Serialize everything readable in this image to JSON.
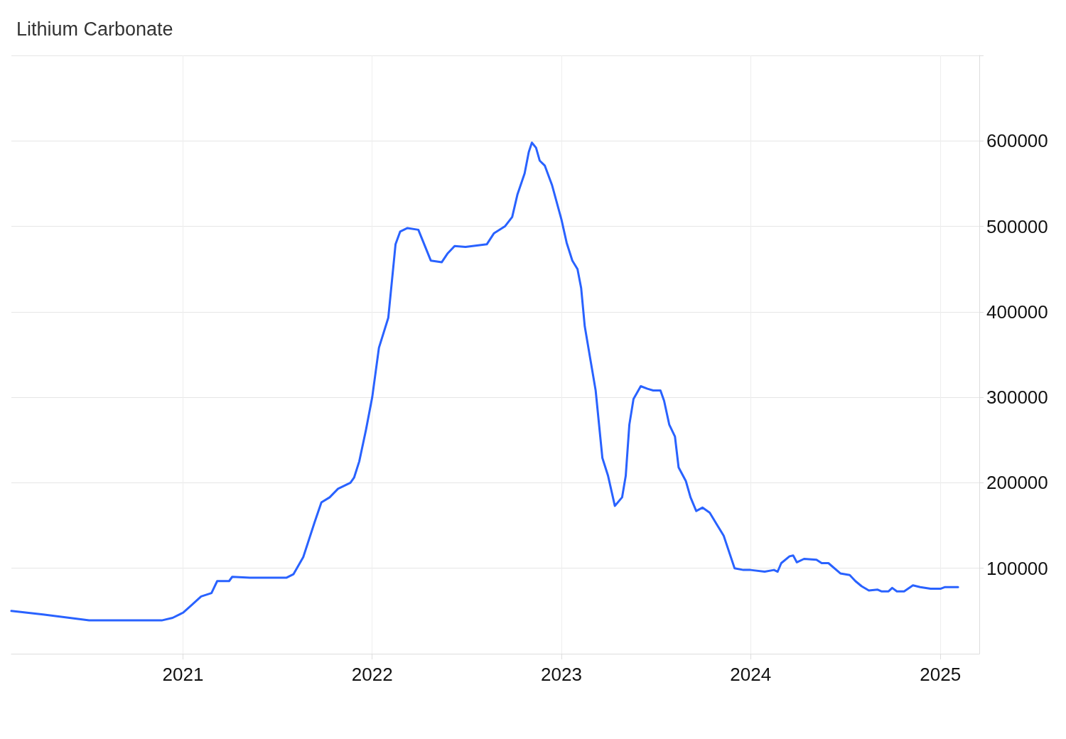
{
  "chart_data": {
    "type": "line",
    "title": "Lithium Carbonate",
    "x": [
      "2020-02-05",
      "2020-04-06",
      "2020-07-04",
      "2020-11-21",
      "2020-12-12",
      "2021-01-01",
      "2021-01-16",
      "2021-02-05",
      "2021-02-25",
      "2021-03-08",
      "2021-03-31",
      "2021-04-06",
      "2021-05-10",
      "2021-07-20",
      "2021-08-02",
      "2021-08-21",
      "2021-09-12",
      "2021-09-25",
      "2021-10-11",
      "2021-10-27",
      "2021-11-20",
      "2021-11-27",
      "2021-12-07",
      "2021-12-20",
      "2022-01-01",
      "2022-01-14",
      "2022-02-01",
      "2022-02-15",
      "2022-02-24",
      "2022-03-10",
      "2022-03-31",
      "2022-04-10",
      "2022-04-24",
      "2022-05-15",
      "2022-05-26",
      "2022-06-09",
      "2022-06-30",
      "2022-08-10",
      "2022-08-24",
      "2022-09-14",
      "2022-09-28",
      "2022-10-08",
      "2022-10-22",
      "2022-10-30",
      "2022-11-05",
      "2022-11-13",
      "2022-11-20",
      "2022-11-30",
      "2022-12-14",
      "2023-01-01",
      "2023-01-11",
      "2023-01-22",
      "2023-02-01",
      "2023-02-08",
      "2023-02-15",
      "2023-03-08",
      "2023-03-21",
      "2023-04-01",
      "2023-04-14",
      "2023-04-28",
      "2023-05-05",
      "2023-05-12",
      "2023-05-20",
      "2023-06-03",
      "2023-06-16",
      "2023-06-27",
      "2023-07-11",
      "2023-07-18",
      "2023-07-28",
      "2023-08-08",
      "2023-08-15",
      "2023-08-29",
      "2023-09-07",
      "2023-09-18",
      "2023-09-30",
      "2023-10-14",
      "2023-10-27",
      "2023-11-10",
      "2023-12-01",
      "2023-12-18",
      "2024-01-01",
      "2024-01-28",
      "2024-02-15",
      "2024-02-22",
      "2024-02-29",
      "2024-03-16",
      "2024-03-23",
      "2024-03-30",
      "2024-04-13",
      "2024-05-07",
      "2024-05-17",
      "2024-05-30",
      "2024-06-22",
      "2024-07-10",
      "2024-07-21",
      "2024-08-02",
      "2024-08-16",
      "2024-09-02",
      "2024-09-09",
      "2024-09-23",
      "2024-09-30",
      "2024-10-09",
      "2024-10-23",
      "2024-11-09",
      "2024-11-23",
      "2024-12-13",
      "2025-01-01",
      "2025-01-10",
      "2025-02-04"
    ],
    "series": [
      {
        "color": "#2962ff",
        "values": [
          50000,
          46000,
          39000,
          39000,
          42000,
          48000,
          56000,
          67000,
          71000,
          85000,
          85000,
          90000,
          89000,
          89000,
          93000,
          113000,
          154000,
          177000,
          183000,
          193000,
          200000,
          206000,
          225000,
          262000,
          300000,
          358000,
          393000,
          479000,
          494000,
          498000,
          496000,
          481000,
          460000,
          458000,
          468000,
          477000,
          476000,
          479000,
          492000,
          500000,
          511000,
          537000,
          562000,
          587000,
          598000,
          592000,
          577000,
          571000,
          548000,
          508000,
          481000,
          460000,
          450000,
          428000,
          383000,
          308000,
          229000,
          208000,
          173000,
          183000,
          208000,
          268000,
          298000,
          313000,
          310000,
          308000,
          308000,
          296000,
          268000,
          254000,
          218000,
          202000,
          183000,
          167000,
          171000,
          165000,
          152000,
          138000,
          100000,
          98000,
          98000,
          96000,
          98000,
          96000,
          106000,
          114000,
          115000,
          107000,
          111000,
          110000,
          106000,
          106000,
          94000,
          92000,
          85000,
          79000,
          74000,
          75000,
          73000,
          73000,
          77000,
          73000,
          73000,
          80000,
          78000,
          76000,
          76000,
          78000,
          78000
        ]
      }
    ],
    "xlim": [
      "2020-02-05",
      "2025-03-17"
    ],
    "xticks": [
      "2021",
      "2022",
      "2023",
      "2024",
      "2025"
    ],
    "ylim": [
      0,
      700000
    ],
    "yticks": [
      100000,
      200000,
      300000,
      400000,
      500000,
      600000,
      {
        "value": 700000,
        "label": null
      }
    ],
    "grid": true,
    "marker": "none",
    "line_style": "solid"
  }
}
